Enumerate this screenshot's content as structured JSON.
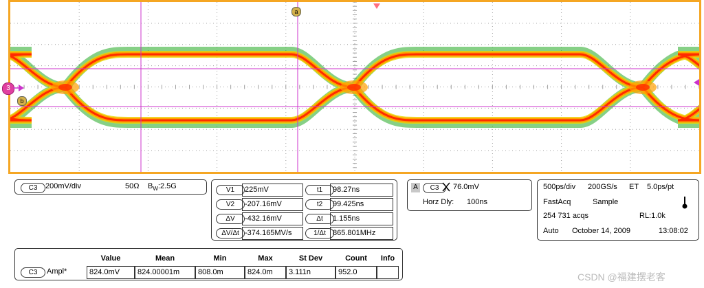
{
  "markers": {
    "a": "a",
    "b": "b",
    "channel": "3"
  },
  "channel_panel": {
    "channel": "C3",
    "scale": "200mV/div",
    "impedance": "50Ω",
    "bandwidth_label": "B",
    "bandwidth_sub": "W",
    "bandwidth_value": ":2.5G"
  },
  "cursor_panel": {
    "left": [
      {
        "label": "V1",
        "value": "225mV"
      },
      {
        "label": "V2",
        "value": "-207.16mV"
      },
      {
        "label": "ΔV",
        "value": "-432.16mV"
      },
      {
        "label": "ΔV/Δt",
        "value": "-374.165MV/s"
      }
    ],
    "right": [
      {
        "label": "t1",
        "value": "98.27ns"
      },
      {
        "label": "t2",
        "value": "99.425ns"
      },
      {
        "label": "Δt",
        "value": "1.155ns"
      },
      {
        "label": "1/Δt",
        "value": "865.801MHz"
      }
    ]
  },
  "trigger_panel": {
    "mode": "A",
    "channel": "C3",
    "level": "76.0mV",
    "horz_label": "Horz Dly:",
    "horz_value": "100ns"
  },
  "acq_panel": {
    "timebase": "500ps/div",
    "sample_rate": "200GS/s",
    "et": "ET",
    "pt": "5.0ps/pt",
    "fastacq": "FastAcq",
    "sample": "Sample",
    "acqs": "254 731 acqs",
    "rl": "RL:1.0k",
    "auto": "Auto",
    "date": "October 14, 2009",
    "time": "13:08:02"
  },
  "measurement_table": {
    "headers": [
      "Value",
      "Mean",
      "Min",
      "Max",
      "St Dev",
      "Count",
      "Info"
    ],
    "channel": "C3",
    "name": "Ampl*",
    "values": [
      "824.0mV",
      "824.00001m",
      "808.0m",
      "824.0m",
      "3.111n",
      "952.0",
      ""
    ]
  },
  "watermark": "CSDN @福建摆老客",
  "colors": {
    "frame": "#f5a623",
    "grid": "#a0a0a0",
    "cursor": "#cc33cc",
    "eye_hot": "#ff2a00",
    "eye_warm": "#ffa000",
    "eye_cool": "#22aa22"
  }
}
